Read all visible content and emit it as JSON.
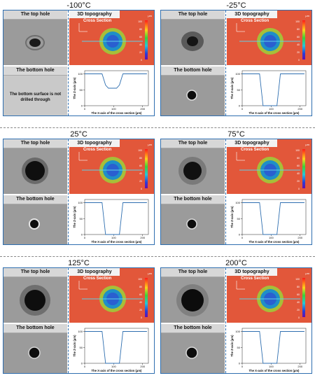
{
  "panels": [
    {
      "temp": "-100°C",
      "top_label": "The top hole",
      "topo_label": "3D topography",
      "cross_label": "Cross Section",
      "bottom_label": "The bottom hole",
      "note": "The bottom surface is not drilled through",
      "depth": 45,
      "bottom_visible": false
    },
    {
      "temp": "-25°C",
      "top_label": "The top hole",
      "topo_label": "3D topography",
      "cross_label": "Cross Section",
      "bottom_label": "The bottom hole",
      "note": "",
      "depth": 100,
      "bottom_visible": true
    },
    {
      "temp": "25°C",
      "top_label": "The top hole",
      "topo_label": "3D topography",
      "cross_label": "Cross Section",
      "bottom_label": "The bottom hole",
      "note": "",
      "depth": 100,
      "bottom_visible": true
    },
    {
      "temp": "75°C",
      "top_label": "The top hole",
      "topo_label": "3D topography",
      "cross_label": "Cross Section",
      "bottom_label": "The bottom hole",
      "note": "",
      "depth": 100,
      "bottom_visible": true
    },
    {
      "temp": "125°C",
      "top_label": "The top hole",
      "topo_label": "3D topography",
      "cross_label": "Cross Section",
      "bottom_label": "The bottom hole",
      "note": "",
      "depth": 100,
      "bottom_visible": true
    },
    {
      "temp": "200°C",
      "top_label": "The top hole",
      "topo_label": "3D topography",
      "cross_label": "Cross Section",
      "bottom_label": "The bottom hole",
      "note": "",
      "depth": 100,
      "bottom_visible": true
    }
  ],
  "profile_axes": {
    "xlabel": "The X-axis of the cross section (μm)",
    "ylabel": "The Z-axis (μm)",
    "xticks": [
      "0",
      "100",
      "200"
    ],
    "yticks": [
      "0",
      "50",
      "100"
    ]
  },
  "colorbar": {
    "unit": "μm",
    "ticks": [
      "100",
      "80",
      "60",
      "40",
      "20",
      "0"
    ]
  },
  "colors": {
    "frame": "#2f6fb0",
    "profile_line": "#2f6fb0",
    "topo_bg": "#e2573a"
  }
}
